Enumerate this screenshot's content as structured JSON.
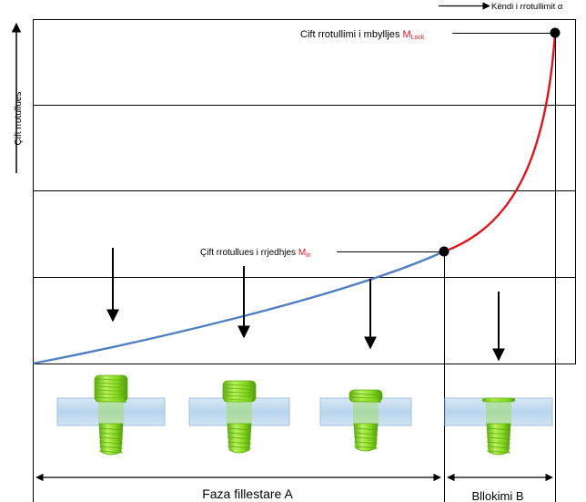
{
  "title": "",
  "y_axis_label": "Çift rrotullues",
  "x_axis_label": "Këndi i rrotullimit α",
  "lock_torque": {
    "text": "Cift rrotullimi i mbylljes ",
    "symbol": "M",
    "subscript": "Lock"
  },
  "prevailing_torque": {
    "text": "Çift rrotullues i rrjedhjes ",
    "symbol": "M",
    "subscript": "in"
  },
  "phase_a_label": "Faza fillestare A",
  "phase_b_label": "Bllokimi B",
  "colors": {
    "phase_a_curve": "#4f7fc0",
    "phase_b_curve": "#e0141e",
    "subscript": "#e0141e",
    "screw": "#8fe021",
    "screw_dark": "#5fae12",
    "sleeve": "#bcd8ee"
  }
}
